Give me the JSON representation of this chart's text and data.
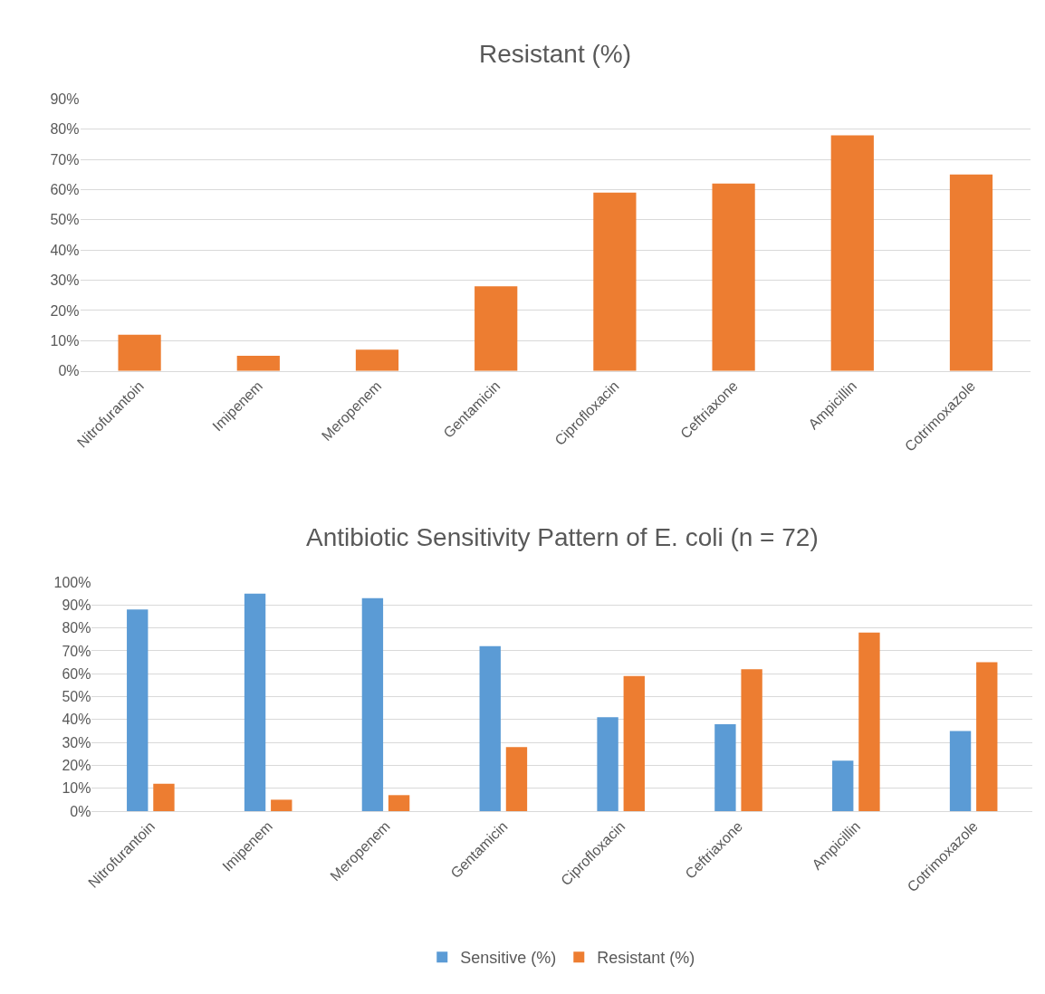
{
  "chart_data": [
    {
      "type": "bar",
      "title": "Resistant (%)",
      "categories": [
        "Nitrofurantoin",
        "Imipenem",
        "Meropenem",
        "Gentamicin",
        "Ciprofloxacin",
        "Ceftriaxone",
        "Ampicillin",
        "Cotrimoxazole"
      ],
      "series": [
        {
          "color": "#ed7d31",
          "values": [
            12,
            5,
            7,
            28,
            59,
            62,
            78,
            65
          ]
        }
      ],
      "ylim": [
        0,
        90
      ],
      "yticks": [
        {
          "value": 0,
          "label": "0%"
        },
        {
          "value": 10,
          "label": "10%"
        },
        {
          "value": 20,
          "label": "20%"
        },
        {
          "value": 30,
          "label": "30%"
        },
        {
          "value": 40,
          "label": "40%"
        },
        {
          "value": 50,
          "label": "50%"
        },
        {
          "value": 60,
          "label": "60%"
        },
        {
          "value": 70,
          "label": "70%"
        },
        {
          "value": 80,
          "label": "80%"
        },
        {
          "value": 90,
          "label": "90%"
        }
      ],
      "grid": "y"
    },
    {
      "type": "bar",
      "title": "Antibiotic Sensitivity Pattern of E. coli (n = 72)",
      "categories": [
        "Nitrofurantoin",
        "Imipenem",
        "Meropenem",
        "Gentamicin",
        "Ciprofloxacin",
        "Ceftriaxone",
        "Ampicillin",
        "Cotrimoxazole"
      ],
      "series": [
        {
          "name": "Sensitive (%)",
          "color": "#5b9bd5",
          "values": [
            88,
            95,
            93,
            72,
            41,
            38,
            22,
            35
          ]
        },
        {
          "name": "Resistant (%)",
          "color": "#ed7d31",
          "values": [
            12,
            5,
            7,
            28,
            59,
            62,
            78,
            65
          ]
        }
      ],
      "ylim": [
        0,
        100
      ],
      "yticks": [
        {
          "value": 0,
          "label": "0%"
        },
        {
          "value": 10,
          "label": "10%"
        },
        {
          "value": 20,
          "label": "20%"
        },
        {
          "value": 30,
          "label": "30%"
        },
        {
          "value": 40,
          "label": "40%"
        },
        {
          "value": 50,
          "label": "50%"
        },
        {
          "value": 60,
          "label": "60%"
        },
        {
          "value": 70,
          "label": "70%"
        },
        {
          "value": 80,
          "label": "80%"
        },
        {
          "value": 90,
          "label": "90%"
        },
        {
          "value": 100,
          "label": "100%"
        }
      ],
      "grid": "y",
      "legend": "bottom"
    }
  ]
}
